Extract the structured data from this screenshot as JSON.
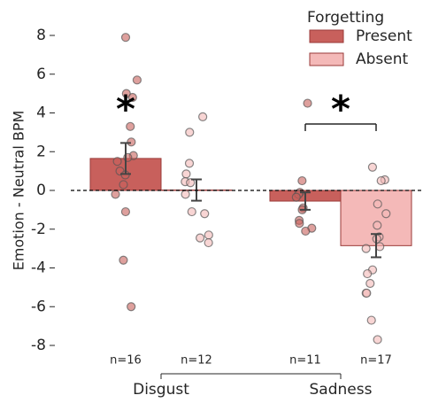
{
  "chart_data": {
    "type": "bar",
    "ylabel": "Emotion - Neutral BPM",
    "categories": [
      "Disgust",
      "Sadness"
    ],
    "legend_title": "Forgetting",
    "series": [
      {
        "name": "Present",
        "color": "#c8605c",
        "values": [
          1.65,
          -0.55
        ],
        "errors": [
          0.8,
          0.45
        ],
        "n_labels": [
          "n=16",
          "n=11"
        ],
        "points": [
          [
            7.9,
            5.7,
            5.0,
            4.8,
            3.3,
            2.5,
            1.8,
            1.7,
            1.5,
            1.0,
            0.8,
            0.3,
            -0.2,
            -1.1,
            -3.6,
            -6.0
          ],
          [
            4.5,
            0.5,
            -0.1,
            -0.2,
            -0.35,
            -0.9,
            -1.0,
            -1.55,
            -1.7,
            -1.95,
            -2.1
          ]
        ]
      },
      {
        "name": "Absent",
        "color": "#f4b9b8",
        "values": [
          0.02,
          -2.85
        ],
        "errors": [
          0.55,
          0.6
        ],
        "n_labels": [
          "n=12",
          "n=17"
        ],
        "points": [
          [
            3.8,
            3.0,
            1.4,
            0.85,
            0.45,
            0.4,
            -0.2,
            -1.1,
            -1.2,
            -2.3,
            -2.45,
            -2.7
          ],
          [
            1.2,
            0.55,
            0.5,
            -0.7,
            -1.2,
            -1.8,
            -2.4,
            -2.5,
            -2.9,
            -3.0,
            -4.1,
            -4.3,
            -4.8,
            -5.3,
            -5.3,
            -6.7,
            -7.7
          ]
        ]
      }
    ],
    "annotations": [
      "*",
      "*"
    ],
    "ylim": [
      -8,
      8
    ],
    "yticks": [
      -8,
      -6,
      -4,
      -2,
      0,
      2,
      4,
      6,
      8
    ]
  }
}
